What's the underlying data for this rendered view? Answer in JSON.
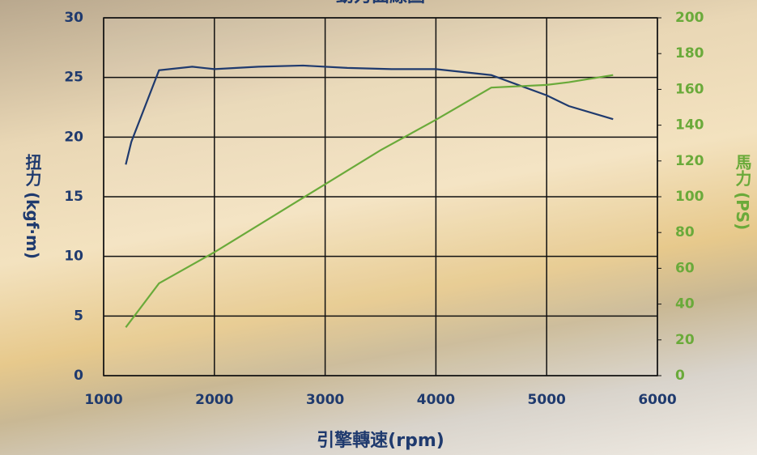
{
  "chart_data": {
    "type": "line",
    "title": "動力曲線圖",
    "x_label": "引擎轉速(rpm)",
    "y_label": "扭力 (kgf·m)",
    "y2_label": "馬力 (PS)",
    "xlim": [
      1000,
      6000
    ],
    "xticks": [
      1000,
      2000,
      3000,
      4000,
      5000,
      6000
    ],
    "ylim": [
      0,
      30
    ],
    "yticks": [
      0,
      5,
      10,
      15,
      20,
      25,
      30
    ],
    "y2lim": [
      0,
      200
    ],
    "y2ticks": [
      0,
      20,
      40,
      60,
      80,
      100,
      120,
      140,
      160,
      180,
      200
    ],
    "grid": true,
    "series": [
      {
        "name": "扭力",
        "color": "#1f3a6e",
        "axis": "y",
        "x": [
          1200,
          1250,
          1500,
          1800,
          2000,
          2400,
          2800,
          3200,
          3600,
          4000,
          4500,
          5000,
          5200,
          5600
        ],
        "values": [
          17.7,
          19.6,
          25.6,
          25.9,
          25.7,
          25.9,
          26.0,
          25.8,
          25.7,
          25.7,
          25.2,
          23.5,
          22.6,
          21.5
        ]
      },
      {
        "name": "馬力",
        "color": "#6aaa3a",
        "axis": "y2",
        "x": [
          1200,
          1500,
          2000,
          2500,
          3000,
          3500,
          4000,
          4500,
          5000,
          5200,
          5600
        ],
        "values": [
          27,
          51.6,
          69,
          88,
          107,
          126,
          143,
          161,
          162.5,
          164,
          168
        ]
      }
    ]
  }
}
